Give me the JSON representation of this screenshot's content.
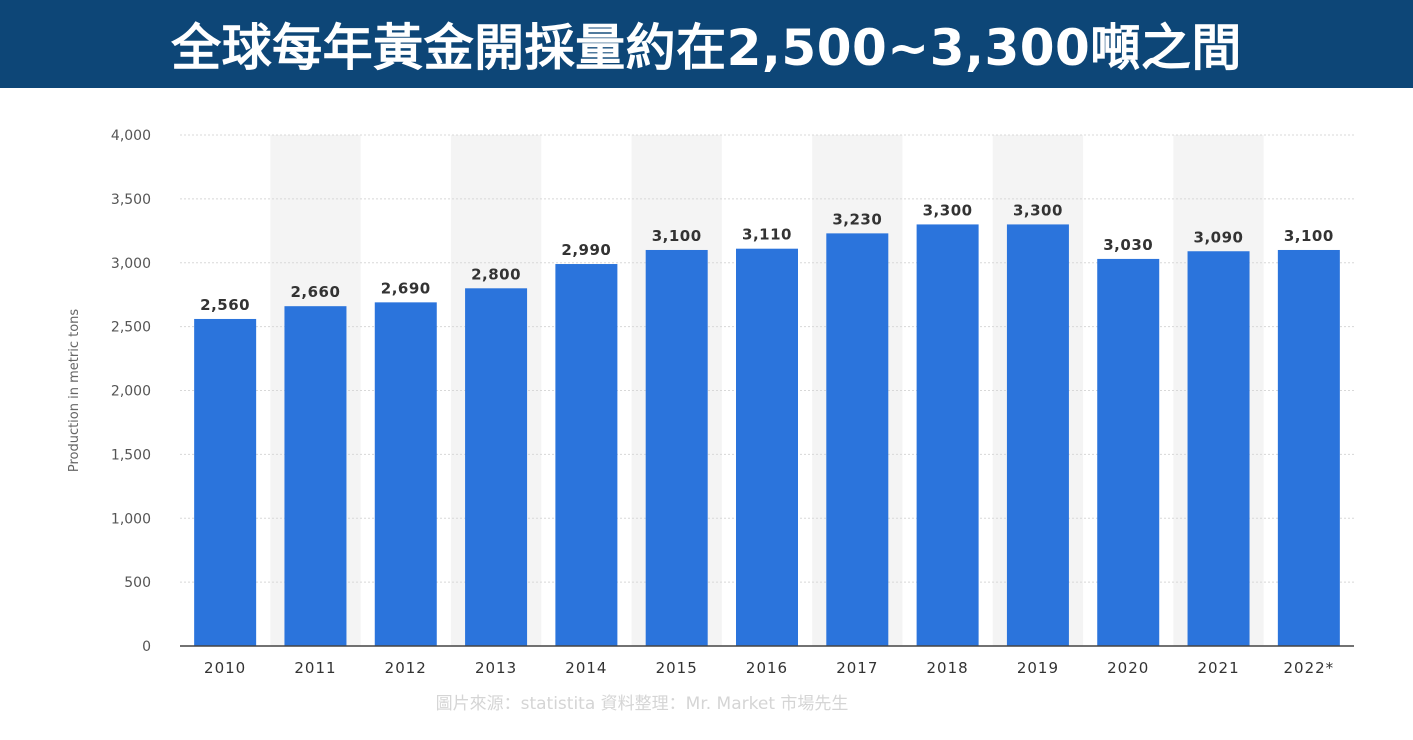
{
  "title": "全球每年黃金開採量約在2,500~3,300噸之間",
  "source": "圖片來源：statistita 資料整理：Mr. Market 市場先生",
  "colors": {
    "title_bg": "#0d4677",
    "bar": "#2b74dc",
    "band": "#f4f4f4",
    "grid": "#d8d8d8"
  },
  "chart_data": {
    "type": "bar",
    "categories": [
      "2010",
      "2011",
      "2012",
      "2013",
      "2014",
      "2015",
      "2016",
      "2017",
      "2018",
      "2019",
      "2020",
      "2021",
      "2022*"
    ],
    "values": [
      2560,
      2660,
      2690,
      2800,
      2990,
      3100,
      3110,
      3230,
      3300,
      3300,
      3030,
      3090,
      3100
    ],
    "value_labels": [
      "2,560",
      "2,660",
      "2,690",
      "2,800",
      "2,990",
      "3,100",
      "3,110",
      "3,230",
      "3,300",
      "3,300",
      "3,030",
      "3,090",
      "3,100"
    ],
    "ylabel": "Production in metric tons",
    "ylim": [
      0,
      4000
    ],
    "yticks": [
      0,
      500,
      1000,
      1500,
      2000,
      2500,
      3000,
      3500,
      4000
    ],
    "ytick_labels": [
      "0",
      "500",
      "1,000",
      "1,500",
      "2,000",
      "2,500",
      "3,000",
      "3,500",
      "4,000"
    ],
    "grid": true,
    "alternating_bands": true
  }
}
